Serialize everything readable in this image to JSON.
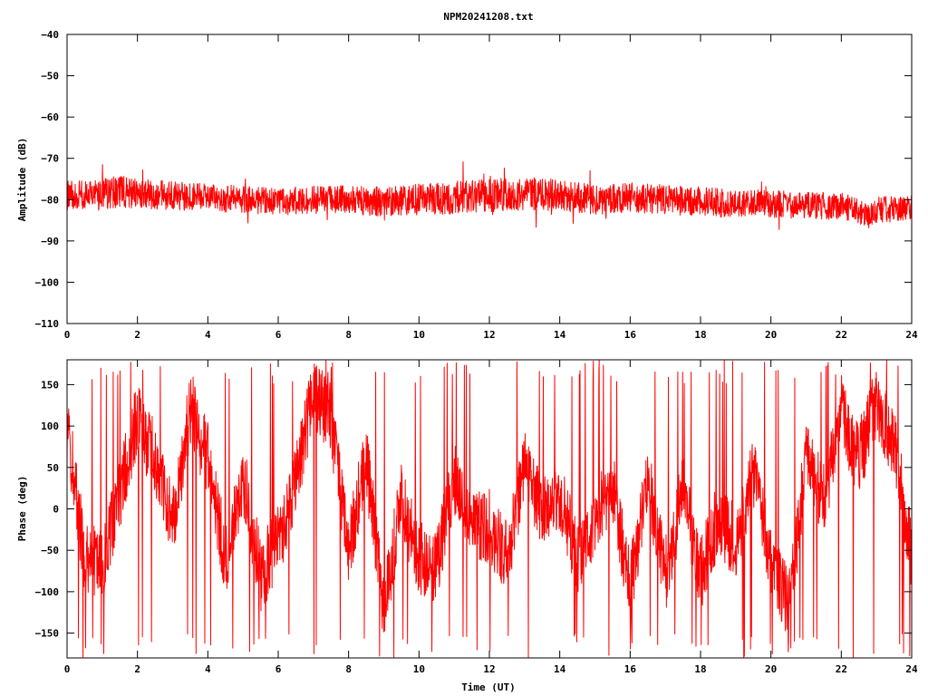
{
  "chart_data": [
    {
      "type": "line",
      "title": "NPM20241208.txt",
      "xlabel": "",
      "ylabel": "Amplitude (dB)",
      "xlim": [
        0,
        24
      ],
      "ylim": [
        -110,
        -40
      ],
      "x_ticks": [
        0,
        2,
        4,
        6,
        8,
        10,
        12,
        14,
        16,
        18,
        20,
        22,
        24
      ],
      "y_ticks": [
        -40,
        -50,
        -60,
        -70,
        -80,
        -90,
        -100,
        -110
      ],
      "grid": false,
      "series": [
        {
          "color": "#ff0000",
          "x": [
            0,
            1,
            1.6,
            2,
            3,
            4,
            5,
            6,
            7,
            8,
            9,
            10,
            11,
            12,
            13,
            14,
            15,
            16,
            17,
            18,
            19,
            20,
            21,
            22,
            22.8,
            23,
            24
          ],
          "y": [
            -79,
            -78.5,
            -78,
            -78.5,
            -79,
            -79.5,
            -80,
            -80.5,
            -80,
            -80,
            -80.5,
            -80,
            -79.5,
            -79,
            -78.5,
            -79,
            -80,
            -79.5,
            -80,
            -80.5,
            -81,
            -81,
            -81.5,
            -81.5,
            -84,
            -82.5,
            -82
          ],
          "spread": [
            3.5,
            3.8,
            4,
            3.8,
            3.5,
            3.4,
            3.3,
            3.3,
            3.4,
            3.5,
            3.6,
            3.8,
            4,
            4,
            4,
            3.8,
            3.6,
            3.6,
            3.6,
            3.6,
            3.4,
            3.3,
            3.3,
            3.3,
            3,
            3.2,
            3.3
          ]
        }
      ]
    },
    {
      "type": "line",
      "title": "",
      "xlabel": "Time (UT)",
      "ylabel": "Phase (deg)",
      "xlim": [
        0,
        24
      ],
      "ylim": [
        -180,
        180
      ],
      "x_ticks": [
        0,
        2,
        4,
        6,
        8,
        10,
        12,
        14,
        16,
        18,
        20,
        22,
        24
      ],
      "y_ticks": [
        150,
        100,
        50,
        0,
        -50,
        -100,
        -150
      ],
      "grid": false,
      "series": [
        {
          "color": "#ff0000",
          "x": [
            0,
            0.5,
            1,
            1.5,
            2,
            2.5,
            3,
            3.5,
            4,
            4.5,
            5,
            5.5,
            6,
            6.5,
            7,
            7.5,
            8,
            8.5,
            9,
            9.5,
            10,
            10.5,
            11,
            11.5,
            12,
            12.5,
            13,
            13.5,
            14,
            14.5,
            15,
            15.5,
            16,
            16.5,
            17,
            17.5,
            18,
            18.5,
            19,
            19.5,
            20,
            20.5,
            21,
            21.5,
            22,
            22.5,
            23,
            23.5,
            24
          ],
          "y": [
            100,
            -60,
            -70,
            20,
            110,
            60,
            -20,
            120,
            60,
            -60,
            40,
            -80,
            -40,
            30,
            140,
            110,
            -50,
            60,
            -120,
            10,
            -60,
            -70,
            40,
            -20,
            -20,
            -60,
            50,
            0,
            20,
            -60,
            -10,
            30,
            -100,
            40,
            -80,
            20,
            -80,
            -10,
            -40,
            40,
            -60,
            -120,
            60,
            10,
            110,
            60,
            130,
            80,
            -60
          ]
        }
      ]
    }
  ]
}
